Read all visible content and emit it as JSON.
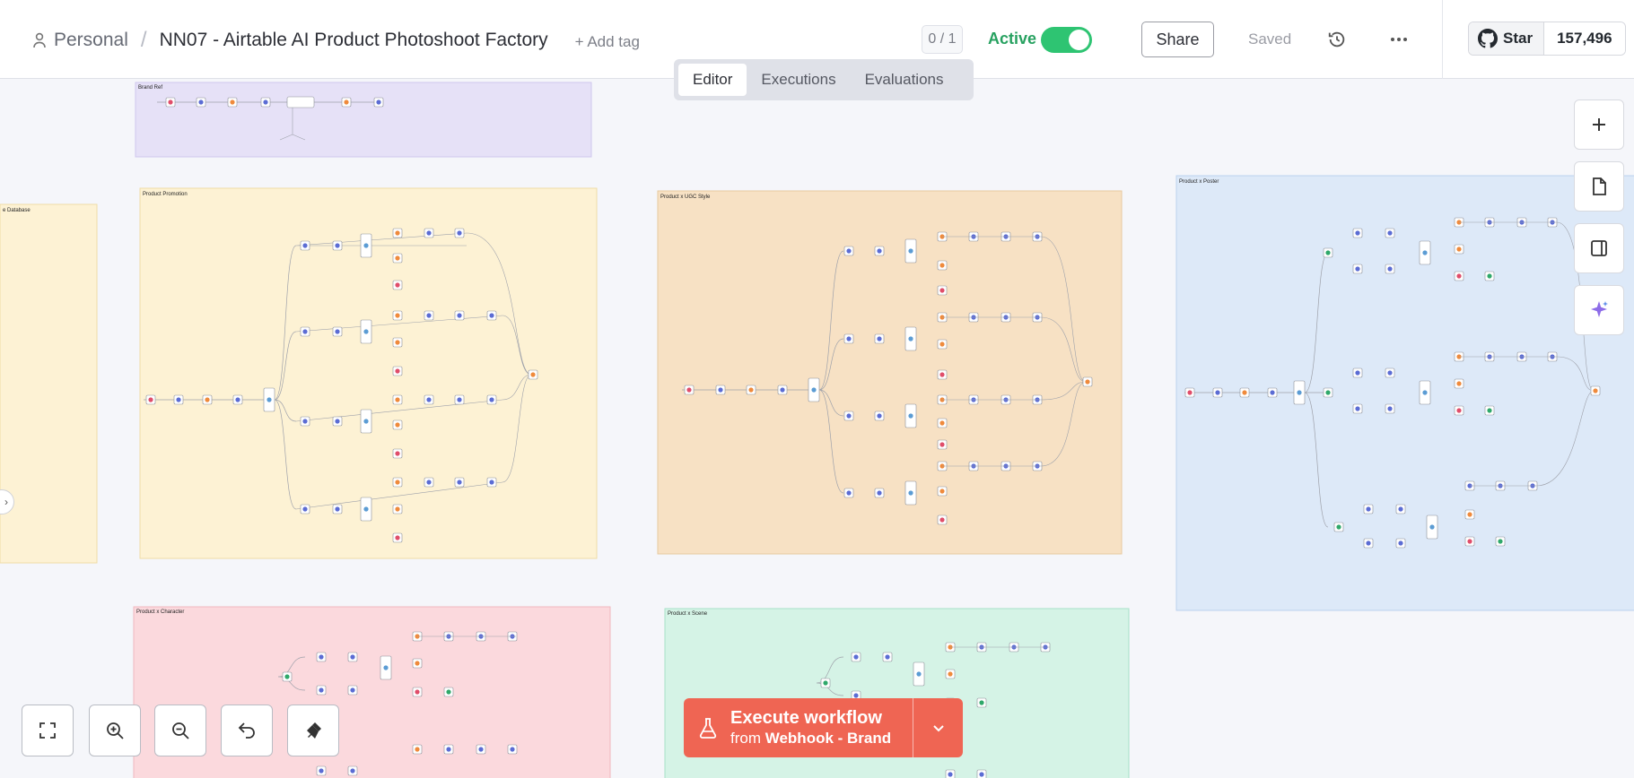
{
  "header": {
    "project": "Personal",
    "separator": "/",
    "workflow_name": "NN07 - Airtable AI Product Photoshoot Factory",
    "add_tag": "+ Add tag",
    "counter": "0 / 1",
    "active_label": "Active",
    "active": true,
    "share": "Share",
    "saved": "Saved",
    "github_star": "Star",
    "github_count": "157,496"
  },
  "tabs": [
    {
      "label": "Editor",
      "active": true
    },
    {
      "label": "Executions",
      "active": false
    },
    {
      "label": "Evaluations",
      "active": false
    }
  ],
  "canvas": {
    "sticky_notes": [
      {
        "title": "Brand Ref",
        "color": "#e6e1f7"
      },
      {
        "title": "e Database",
        "color": "#fdf2d4"
      },
      {
        "title": "Product Promotion",
        "color": "#fdf2d4"
      },
      {
        "title": "Product x UGC Style",
        "color": "#f7e1c4"
      },
      {
        "title": "Product x Poster",
        "color": "#dde9f8"
      },
      {
        "title": "Product x Character",
        "color": "#fbd9dd"
      },
      {
        "title": "Product x Scene",
        "color": "#d5f3e6"
      }
    ]
  },
  "right_toolbar": {
    "icons": [
      "plus-icon",
      "sticky-note-icon",
      "panel-icon",
      "ai-sparkle-icon"
    ]
  },
  "bottom_controls": {
    "icons": [
      "fit-view-icon",
      "zoom-in-icon",
      "zoom-out-icon",
      "reset-zoom-icon",
      "tidy-up-icon"
    ]
  },
  "execute": {
    "label": "Execute workflow",
    "from_prefix": "from",
    "trigger": "Webhook - Brand"
  },
  "colors": {
    "accent": "#ef6553",
    "active_green": "#2ec472"
  }
}
